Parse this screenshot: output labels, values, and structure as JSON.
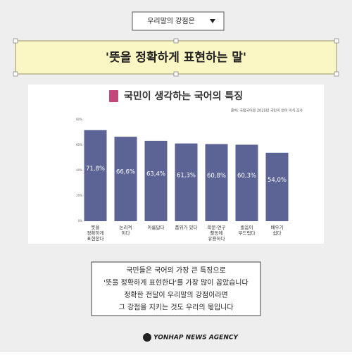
{
  "header": {
    "dropdown": "우리말의 강점은",
    "headline": "'뜻을 정확하게 표현하는 말'"
  },
  "chart_data": {
    "type": "bar",
    "title": "국민이 생각하는 국어의 특징",
    "source": "출처: 국립국어원 2025년 국민의 언어 의식 조사",
    "categories": [
      [
        "뜻을",
        "정확하게",
        "표현한다"
      ],
      [
        "논리적",
        "이다"
      ],
      [
        "아름답다"
      ],
      [
        "품위가 있다"
      ],
      [
        "학문·연구",
        "활동에",
        "유용하다"
      ],
      [
        "발음이",
        "부드럽다"
      ],
      [
        "배우기",
        "쉽다"
      ]
    ],
    "values": [
      71.8,
      66.6,
      63.4,
      61.3,
      60.8,
      60.3,
      54.0
    ],
    "value_labels": [
      "71,8%",
      "66,6%",
      "63,4%",
      "61,3%",
      "60,8%",
      "60,3%",
      "54,0%"
    ],
    "color": "#5b6494",
    "ylim": [
      0,
      80
    ],
    "yticks": [
      {
        "value": 0,
        "label": "0%"
      },
      {
        "value": 20,
        "label": "20%"
      },
      {
        "value": 40,
        "label": "40%"
      },
      {
        "value": 60,
        "label": "60%"
      },
      {
        "value": 80,
        "label": "80%"
      }
    ]
  },
  "summary": [
    "국민들은 국어의 가장 큰 특징으로",
    "'뜻을 정확하게 표현한다'를 가장 많이 꼽았습니다",
    "정확한 전달이 우리말의 강점이라면",
    "그 강점을 지키는 것도 우리의 몫입니다"
  ],
  "credit": "YONHAP NEWS AGENCY"
}
